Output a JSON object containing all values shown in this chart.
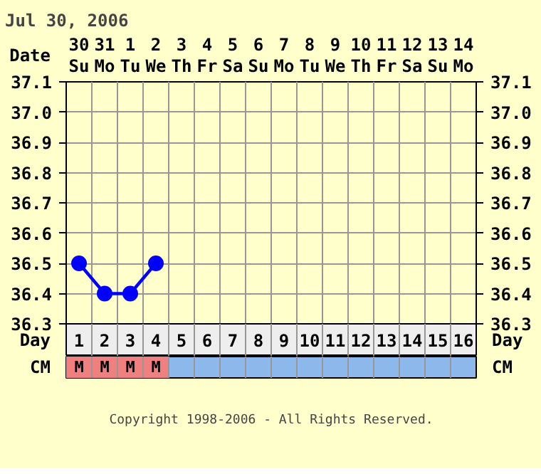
{
  "chart_data": {
    "type": "line",
    "title": "Jul 30, 2006",
    "xlabel": "Day",
    "x2label": "Date",
    "x": [
      1,
      2,
      3,
      4
    ],
    "series": [
      {
        "color": "#0000ff",
        "values": [
          36.5,
          36.4,
          36.4,
          36.5
        ]
      }
    ],
    "xlim": [
      0.5,
      16.5
    ],
    "xticks": [
      1,
      2,
      3,
      4,
      5,
      6,
      7,
      8,
      9,
      10,
      11,
      12,
      13,
      14,
      15,
      16
    ],
    "x2lim": [
      "2006-07-29T12:00",
      "2006-08-14T12:00"
    ],
    "x2ticks": [
      {
        "value": "2006-07-30",
        "label": "30\nSu"
      },
      {
        "value": "2006-07-31",
        "label": "31\nMo"
      },
      {
        "value": "2006-08-01",
        "label": "1\nTu"
      },
      {
        "value": "2006-08-02",
        "label": "2\nWe"
      },
      {
        "value": "2006-08-03",
        "label": "3\nTh"
      },
      {
        "value": "2006-08-04",
        "label": "4\nFr"
      },
      {
        "value": "2006-08-05",
        "label": "5\nSa"
      },
      {
        "value": "2006-08-06",
        "label": "6\nSu"
      },
      {
        "value": "2006-08-07",
        "label": "7\nMo"
      },
      {
        "value": "2006-08-08",
        "label": "8\nTu"
      },
      {
        "value": "2006-08-09",
        "label": "9\nWe"
      },
      {
        "value": "2006-08-10",
        "label": "10\nTh"
      },
      {
        "value": "2006-08-11",
        "label": "11\nFr"
      },
      {
        "value": "2006-08-12",
        "label": "12\nSa"
      },
      {
        "value": "2006-08-13",
        "label": "13\nSu"
      },
      {
        "value": "2006-08-14",
        "label": "14\nMo"
      }
    ],
    "ylim": [
      36.3,
      37.1
    ],
    "yticks": [
      36.3,
      36.4,
      36.5,
      36.6,
      36.7,
      36.8,
      36.9,
      {
        "value": 37.0,
        "label": "37.0"
      },
      37.1
    ],
    "y2lim": [
      36.3,
      37.1
    ],
    "y2ticks": [
      36.3,
      36.4,
      36.5,
      36.6,
      36.7,
      36.8,
      36.9,
      {
        "value": 37.0,
        "label": "37.0"
      },
      37.1
    ],
    "grid": true,
    "marker": "circle",
    "line_style": "solid",
    "annotations": [
      "CM",
      "M",
      "M",
      "M",
      "M",
      "Copyright 1998-2006 - All Rights Reserved."
    ]
  }
}
